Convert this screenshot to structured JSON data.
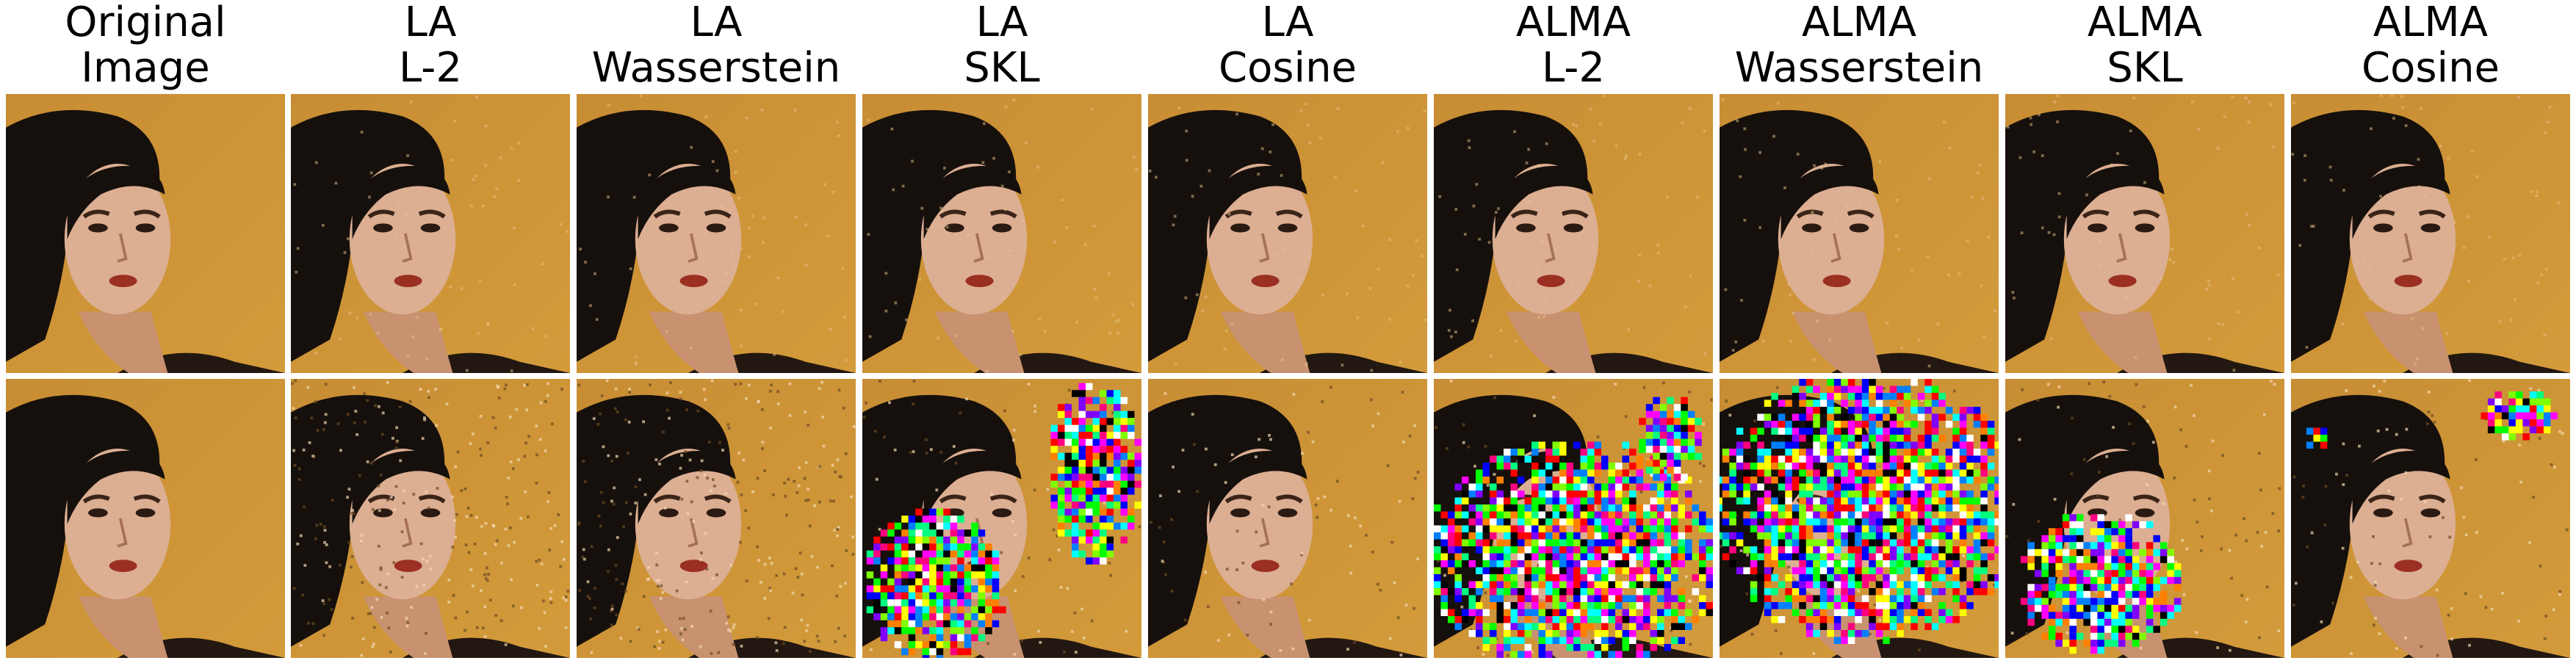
{
  "columns": [
    {
      "line1": "Original",
      "line2": "Image"
    },
    {
      "line1": "LA",
      "line2": "L-2"
    },
    {
      "line1": "LA",
      "line2": "Wasserstein"
    },
    {
      "line1": "LA",
      "line2": "SKL"
    },
    {
      "line1": "LA",
      "line2": "Cosine"
    },
    {
      "line1": "ALMA",
      "line2": "L-2"
    },
    {
      "line1": "ALMA",
      "line2": "Wasserstein"
    },
    {
      "line1": "ALMA",
      "line2": "SKL"
    },
    {
      "line1": "ALMA",
      "line2": "Cosine"
    }
  ],
  "colors": {
    "background": "#ffffff",
    "orange_bg": "#d39b3a",
    "hair": "#16100c",
    "skin": "#dcae92",
    "lips": "#9a2f22"
  }
}
